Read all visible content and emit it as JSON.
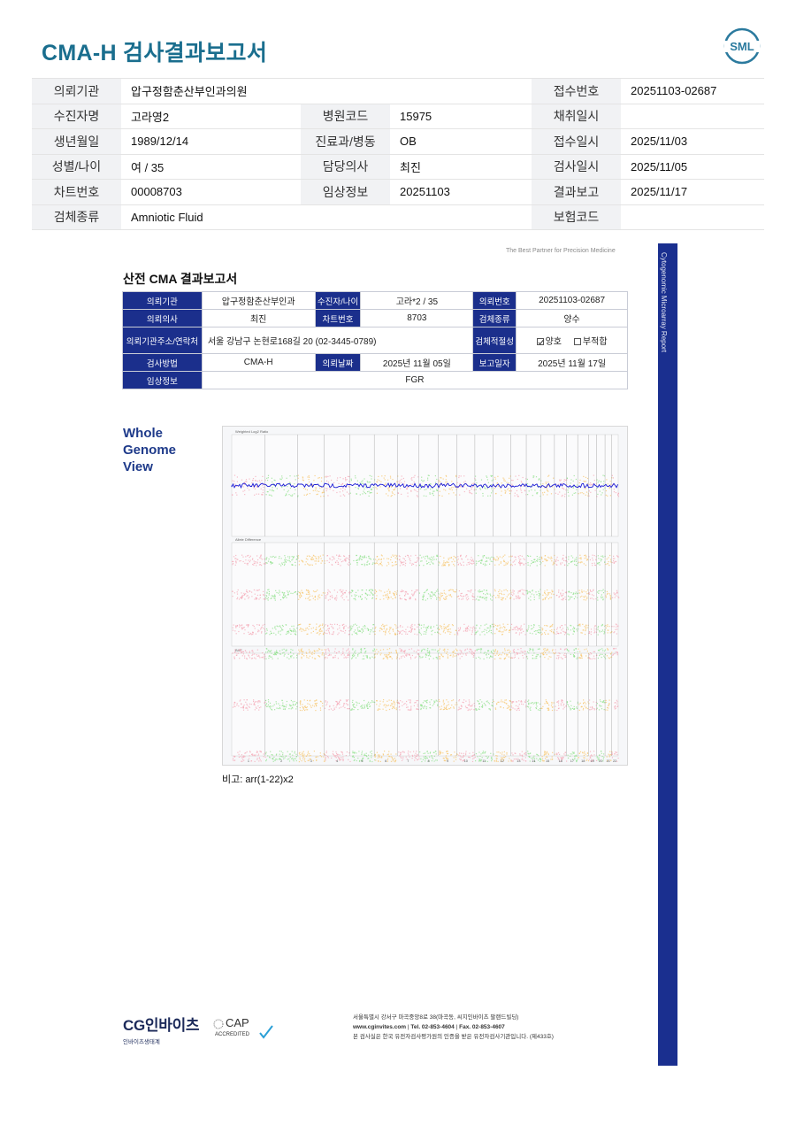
{
  "header": {
    "title": "CMA-H 검사결과보고서",
    "logo_text": "SML"
  },
  "top_table": {
    "institution_label": "의뢰기관",
    "institution": "압구정함춘산부인과의원",
    "receipt_no_label": "접수번호",
    "receipt_no": "20251103-02687",
    "patient_label": "수진자명",
    "patient": "고라영2",
    "hospital_code_label": "병원코드",
    "hospital_code": "15975",
    "collect_date_label": "채취일시",
    "collect_date": "",
    "birth_label": "생년월일",
    "birth": "1989/12/14",
    "dept_label": "진료과/병동",
    "dept": "OB",
    "receipt_date_label": "접수일시",
    "receipt_date": "2025/11/03",
    "sex_age_label": "성별/나이",
    "sex_age": "여 / 35",
    "doctor_label": "담당의사",
    "doctor": "최진",
    "test_date_label": "검사일시",
    "test_date": "2025/11/05",
    "chart_no_label": "차트번호",
    "chart_no": "00008703",
    "clinical_label": "임상정보",
    "clinical": "20251103",
    "report_date_label": "결과보고",
    "report_date": "2025/11/17",
    "specimen_label": "검체종류",
    "specimen": "Amniotic Fluid",
    "insurance_label": "보험코드",
    "insurance": ""
  },
  "report": {
    "tagline": "The Best Partner for Precision Medicine",
    "side_text": "Cytogenomic Microarray Report",
    "title": "산전 CMA 결과보고서",
    "t_institution_label": "의뢰기관",
    "t_institution": "압구정함춘산부인과",
    "t_patient_label": "수진자/나이",
    "t_patient": "고라*2 / 35",
    "t_req_no_label": "의뢰번호",
    "t_req_no": "20251103-02687",
    "t_doctor_label": "의뢰의사",
    "t_doctor": "최진",
    "t_chart_label": "차트번호",
    "t_chart": "8703",
    "t_specimen_label": "검체종류",
    "t_specimen": "양수",
    "t_address_label": "의뢰기관주소/연락처",
    "t_address": "서울 강남구 논현로168길 20 (02-3445-0789)",
    "t_adequacy_label": "검체적절성",
    "t_good": "양호",
    "t_bad": "부적합",
    "t_method_label": "검사방법",
    "t_method": "CMA-H",
    "t_req_date_label": "의뢰날짜",
    "t_req_date": "2025년 11월 05일",
    "t_rep_date_label": "보고일자",
    "t_rep_date": "2025년 11월 17일",
    "t_clinical_label": "임상정보",
    "t_clinical": "FGR",
    "wgv_line1": "Whole",
    "wgv_line2": "Genome",
    "wgv_line3": "View",
    "remark": "비고: arr(1-22)x2"
  },
  "chart_data": {
    "type": "scatter",
    "title": "",
    "panels": [
      {
        "name": "Weighted Log2 Ratio",
        "ylim": [
          -1.5,
          1.5
        ],
        "baseline": 0
      },
      {
        "name": "Allele Difference",
        "ylim": [
          -1.5,
          1.5
        ],
        "tracks": [
          1,
          0,
          -1
        ]
      },
      {
        "name": "BAF",
        "ylim": [
          0,
          1
        ],
        "tracks": [
          1,
          0.5,
          0
        ]
      }
    ],
    "x_categories": [
      "1",
      "2",
      "3",
      "4",
      "5",
      "6",
      "7",
      "8",
      "9",
      "10",
      "11",
      "12",
      "13",
      "14",
      "15",
      "16",
      "17",
      "18",
      "19",
      "20",
      "21",
      "22"
    ],
    "chromosome_widths": [
      248,
      242,
      198,
      190,
      181,
      171,
      159,
      145,
      138,
      134,
      135,
      133,
      114,
      107,
      102,
      90,
      83,
      80,
      59,
      64,
      47,
      51
    ],
    "series_colors": [
      "#f4a6b4",
      "#8de08a",
      "#f7c46a"
    ],
    "line_color": "#1a1ad6"
  },
  "footer": {
    "cg_logo": "CG인바이츠",
    "cg_sub": "인바이츠생태계",
    "cap_text": "CAP",
    "cap_sub": "ACCREDITED",
    "address": "서울특별시 강서구 마곡중앙8로 38(마곡동, 씨지인바이츠 팔랜드빌딩)",
    "web": "www.cginvites.com",
    "tel": "Tel. 02-853-4604",
    "fax": "Fax. 02-853-4607",
    "cert": "본 검사실은 한국 유전자검사평가원의 인증을 받은 유전자검사기관입니다. (제433호)"
  }
}
